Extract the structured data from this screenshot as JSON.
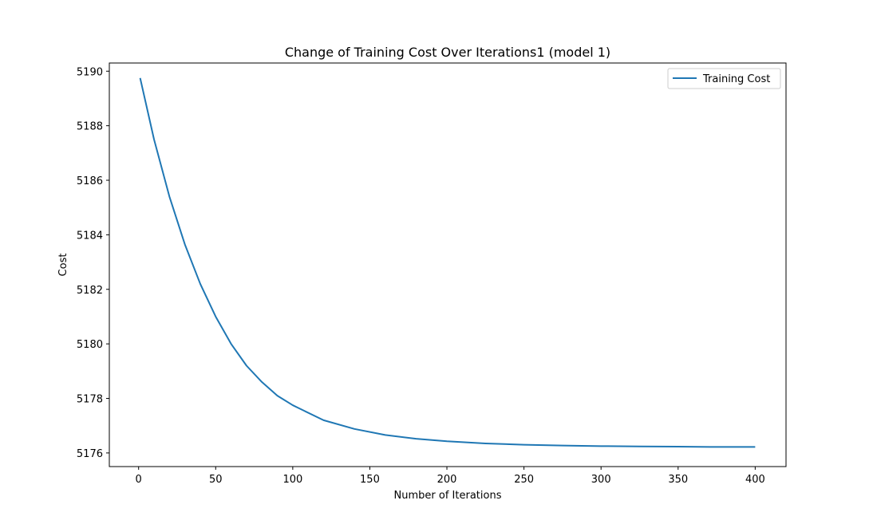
{
  "chart_data": {
    "type": "line",
    "title": "Change of Training Cost Over Iterations1 (model 1)",
    "xlabel": "Number of Iterations",
    "ylabel": "Cost",
    "xlim": [
      -19,
      420
    ],
    "ylim": [
      5175.5,
      5190.3
    ],
    "xticks": [
      0,
      50,
      100,
      150,
      200,
      250,
      300,
      350,
      400
    ],
    "yticks": [
      5176,
      5178,
      5180,
      5182,
      5184,
      5186,
      5188,
      5190
    ],
    "grid": false,
    "legend_position": "top-right",
    "series": [
      {
        "name": "Training Cost",
        "color": "#1f77b4",
        "x": [
          1,
          10,
          20,
          30,
          40,
          50,
          60,
          70,
          80,
          90,
          100,
          120,
          140,
          160,
          180,
          200,
          225,
          250,
          275,
          300,
          325,
          350,
          375,
          400
        ],
        "values": [
          5189.75,
          5187.5,
          5185.4,
          5183.65,
          5182.2,
          5181.0,
          5180.0,
          5179.2,
          5178.6,
          5178.1,
          5177.75,
          5177.2,
          5176.88,
          5176.66,
          5176.52,
          5176.43,
          5176.35,
          5176.3,
          5176.27,
          5176.25,
          5176.24,
          5176.23,
          5176.22,
          5176.22
        ]
      }
    ]
  }
}
